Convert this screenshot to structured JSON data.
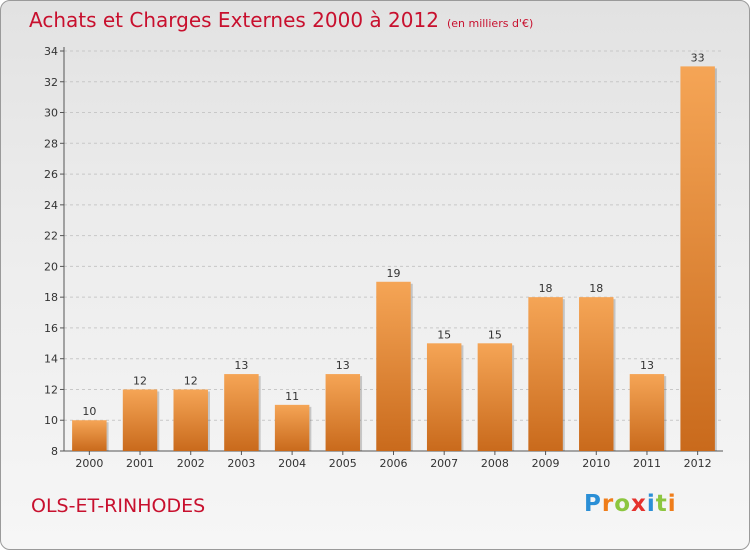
{
  "header": {
    "title": "Achats et Charges Externes 2000 à 2012",
    "subtitle": "(en milliers d'€)"
  },
  "footer": {
    "commune": "OLS-ET-RINHODES",
    "logo_letters": [
      "P",
      "r",
      "o",
      "x",
      "i",
      "t",
      "i"
    ]
  },
  "colors": {
    "title": "#c8102e",
    "bar_light": "#f5a556",
    "bar_dark": "#c96a1c",
    "logo": [
      "#2b8fd6",
      "#ef7d1a",
      "#8cc63f",
      "#e5322d",
      "#2b8fd6",
      "#8cc63f",
      "#ef7d1a"
    ]
  },
  "chart_data": {
    "type": "bar",
    "title": "Achats et Charges Externes 2000 à 2012",
    "subtitle": "(en milliers d'€)",
    "categories": [
      "2000",
      "2001",
      "2002",
      "2003",
      "2004",
      "2005",
      "2006",
      "2007",
      "2008",
      "2009",
      "2010",
      "2011",
      "2012"
    ],
    "values": [
      10,
      12,
      12,
      13,
      11,
      13,
      19,
      15,
      15,
      18,
      18,
      13,
      33
    ],
    "data_labels": [
      "10",
      "12",
      "12",
      "13",
      "11",
      "13",
      "19",
      "15",
      "15",
      "18",
      "18",
      "13",
      "33"
    ],
    "ylim": [
      8,
      34
    ],
    "yticks": [
      "8",
      "10",
      "12",
      "14",
      "16",
      "18",
      "20",
      "22",
      "24",
      "26",
      "28",
      "30",
      "32",
      "34"
    ],
    "grid": true,
    "xlabel": "",
    "ylabel": ""
  }
}
